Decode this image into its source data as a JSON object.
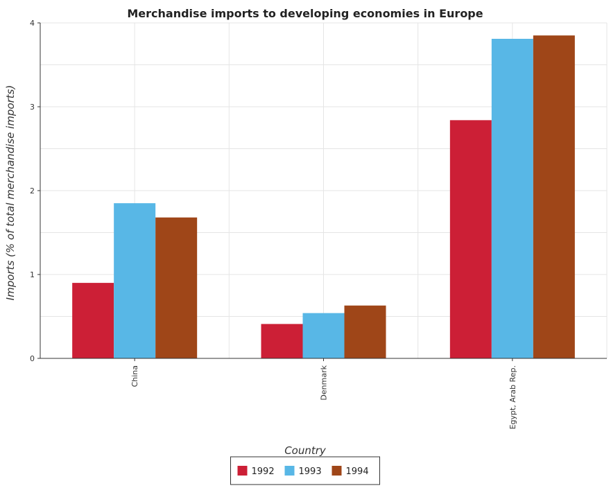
{
  "chart_data": {
    "type": "bar",
    "title": "Merchandise imports to developing economies in Europe",
    "xlabel": "Country",
    "ylabel": "Imports (% of total merchandise imports)",
    "categories": [
      "China",
      "Denmark",
      "Egypt, Arab Rep."
    ],
    "series": [
      {
        "name": "1992",
        "color": "#cc1f36",
        "values": [
          0.9,
          0.41,
          2.84
        ]
      },
      {
        "name": "1993",
        "color": "#58b7e6",
        "values": [
          1.85,
          0.54,
          3.81
        ]
      },
      {
        "name": "1994",
        "color": "#9f4618",
        "values": [
          1.68,
          0.63,
          3.85
        ]
      }
    ],
    "ylim": [
      0,
      4
    ],
    "yticks": [
      "0",
      "1",
      "2",
      "3",
      "4"
    ],
    "grid": true,
    "legend": "bottom-center"
  }
}
